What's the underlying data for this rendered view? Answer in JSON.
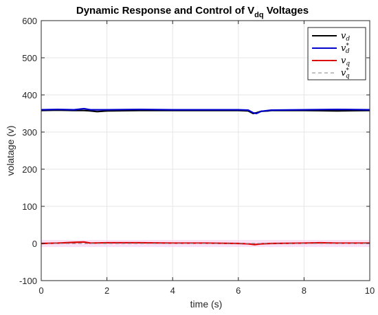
{
  "chart_data": {
    "type": "line",
    "title": "Dynamic Response and Control of V",
    "title_subscript": "dq",
    "title_suffix": " Voltages",
    "xlabel": "time (s)",
    "ylabel": "volatage (v)",
    "xlim": [
      0,
      10
    ],
    "ylim": [
      -100,
      600
    ],
    "xticks": [
      "0",
      "2",
      "4",
      "6",
      "8",
      "10"
    ],
    "yticks": [
      "-100",
      "0",
      "100",
      "200",
      "300",
      "400",
      "500",
      "600"
    ],
    "grid": true,
    "legend_position": "top-right",
    "series": [
      {
        "name": "v_d",
        "legend_base": "v",
        "legend_sub": "d",
        "legend_sup": "",
        "color": "#000000",
        "style": "solid",
        "x": [
          0,
          0.5,
          1.0,
          1.3,
          1.5,
          1.7,
          2.0,
          3.0,
          4.0,
          5.0,
          6.0,
          6.3,
          6.45,
          6.55,
          6.7,
          6.9,
          7.0,
          8.0,
          9.0,
          10.0
        ],
        "y": [
          358,
          359,
          358,
          358,
          357,
          355,
          357,
          358,
          358,
          358,
          358,
          357,
          350,
          352,
          356,
          357,
          358,
          358,
          357,
          358
        ]
      },
      {
        "name": "v_d*",
        "legend_base": "v",
        "legend_sub": "d",
        "legend_sup": "*",
        "color": "#0000cc",
        "style": "solid",
        "x": [
          0,
          0.5,
          1.0,
          1.3,
          1.5,
          2.0,
          3.0,
          4.0,
          5.0,
          6.0,
          6.3,
          6.45,
          6.55,
          6.7,
          7.0,
          8.0,
          9.0,
          10.0
        ],
        "y": [
          360,
          361,
          360,
          363,
          360,
          360,
          361,
          360,
          360,
          360,
          359,
          352,
          350,
          356,
          359,
          360,
          361,
          360
        ]
      },
      {
        "name": "v_q",
        "legend_base": "v",
        "legend_sub": "q",
        "legend_sup": "",
        "color": "#dd0000",
        "style": "solid",
        "x": [
          0,
          0.5,
          1.0,
          1.3,
          1.5,
          2.0,
          3.0,
          4.0,
          5.0,
          6.0,
          6.3,
          6.5,
          6.7,
          7.0,
          8.0,
          8.5,
          9.0,
          10.0
        ],
        "y": [
          0,
          1,
          3,
          4,
          1,
          2,
          2,
          1,
          1,
          0,
          -1,
          -3,
          -1,
          0,
          1,
          2,
          1,
          1
        ]
      },
      {
        "name": "v_q*",
        "legend_base": "v",
        "legend_sub": "q",
        "legend_sup": "*",
        "color": "#808080",
        "style": "dashed",
        "x": [
          0,
          2,
          4,
          6,
          8,
          10
        ],
        "y": [
          0,
          0,
          0,
          0,
          0,
          0
        ]
      }
    ]
  }
}
